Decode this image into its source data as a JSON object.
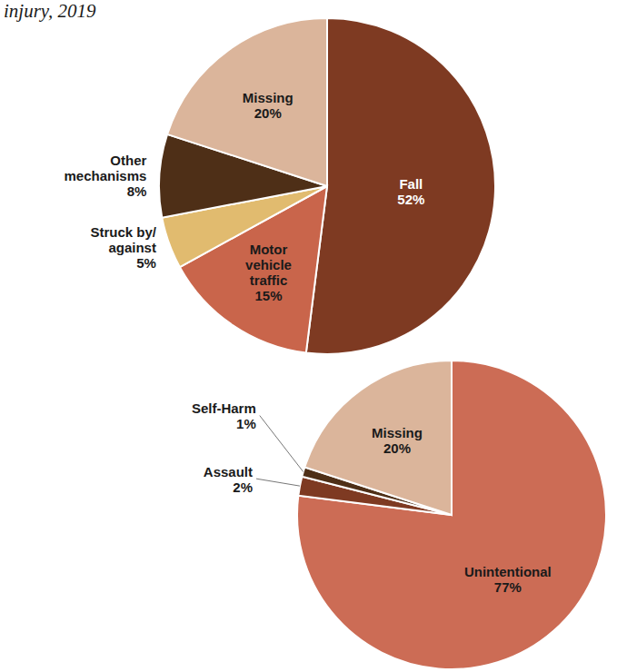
{
  "chart_data": [
    {
      "type": "pie",
      "title": "injury, 2019",
      "categories": [
        "Fall",
        "Motor vehicle traffic",
        "Struck by/against",
        "Other mechanisms",
        "Missing"
      ],
      "values": [
        52,
        15,
        5,
        8,
        20
      ],
      "value_labels": [
        "52%",
        "15%",
        "5%",
        "8%",
        "20%"
      ],
      "colors": [
        "#7e3a22",
        "#c9654b",
        "#e1bb6f",
        "#4e2f17",
        "#dbb59b"
      ]
    },
    {
      "type": "pie",
      "categories": [
        "Unintentional",
        "Assault",
        "Self-Harm",
        "Missing"
      ],
      "values": [
        77,
        2,
        1,
        20
      ],
      "value_labels": [
        "77%",
        "2%",
        "1%",
        "20%"
      ],
      "colors": [
        "#cc6c55",
        "#7e3a22",
        "#4e2f17",
        "#dbb59b"
      ]
    }
  ]
}
